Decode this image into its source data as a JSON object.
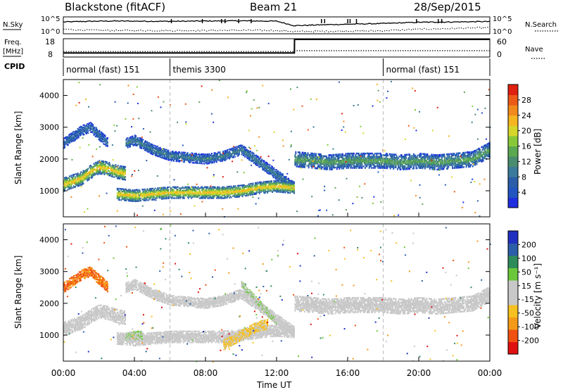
{
  "header": {
    "station": "Blackstone (fitACF)",
    "beam": "Beam 21",
    "date": "28/Sep/2015"
  },
  "side_labels": {
    "nsky": "N.Sky",
    "nsearch": "N.Search",
    "freq": "Freq.",
    "freq_unit": "[MHz]",
    "cpid": "CPID",
    "nave": "Nave"
  },
  "small_axes": {
    "noise_left_ticks": [
      "10^5",
      "10^0"
    ],
    "noise_right_ticks": [
      "10^5",
      "10^0"
    ],
    "freq_left_ticks": [
      "18",
      "8"
    ],
    "nave_right_ticks": [
      "60",
      "0"
    ]
  },
  "cpid_segments": [
    {
      "label": "normal (fast) 151",
      "start_h": 0
    },
    {
      "label": "themis 3300",
      "start_h": 6
    },
    {
      "label": "normal (fast) 151",
      "start_h": 18
    }
  ],
  "colors": {
    "power": [
      "#1f2fe0",
      "#2255c0",
      "#2a5ea8",
      "#3a7a9a",
      "#4a8c70",
      "#5aa850",
      "#88c838",
      "#d6d62a",
      "#f4b520",
      "#f08a1c",
      "#ec5a18",
      "#e02010"
    ],
    "velocity": [
      "#e01010",
      "#f05010",
      "#f59a18",
      "#f5c020",
      "#c8c8c8",
      "#c8c8c8",
      "#6ac83a",
      "#2e8c5a",
      "#2a5ea8",
      "#2030c0"
    ],
    "grey_scatter": "#c8c8c8"
  },
  "chart_data": [
    {
      "type": "line",
      "name": "noise",
      "x": [
        0,
        1,
        2,
        3,
        4,
        6,
        8,
        10,
        12,
        13,
        15,
        18,
        20,
        22,
        24
      ],
      "series": [
        {
          "name": "N.Sky",
          "values": [
            0.72,
            0.75,
            0.77,
            0.78,
            0.77,
            0.76,
            0.78,
            0.79,
            0.77,
            0.48,
            0.55,
            0.62,
            0.7,
            0.72,
            0.75
          ]
        },
        {
          "name": "N.Search",
          "values": [
            0.25,
            0.2,
            0.18,
            0.17,
            0.17,
            0.16,
            0.17,
            0.18,
            0.17,
            0.1,
            0.12,
            0.15,
            0.25,
            0.3,
            0.35
          ]
        }
      ]
    },
    {
      "type": "line",
      "name": "frequency / nave",
      "x": [
        0,
        13,
        13.01,
        24
      ],
      "series": [
        {
          "name": "Freq.",
          "values": [
            10,
            10,
            18,
            18
          ]
        },
        {
          "name": "Nave",
          "values": [
            17,
            17,
            20,
            20
          ]
        }
      ]
    },
    {
      "type": "heatmap",
      "name": "power",
      "xlabel": "",
      "ylabel": "Slant Range [km]",
      "xlim": [
        0,
        24
      ],
      "ylim": [
        180,
        4500
      ],
      "yticks": [
        1000,
        2000,
        3000,
        4000
      ],
      "colorbar": {
        "label": "Power [dB]",
        "ticks": [
          "4",
          "8",
          "12",
          "16",
          "20",
          "24",
          "28"
        ],
        "range": [
          0,
          30
        ]
      },
      "bands": [
        {
          "x": [
            0,
            0.5,
            1,
            1.5,
            2,
            2.5,
            3,
            3.5
          ],
          "center": [
            1200,
            1300,
            1400,
            1600,
            1750,
            1700,
            1600,
            1550
          ],
          "width": 400,
          "value": 22
        },
        {
          "x": [
            3.5,
            4,
            5,
            6,
            7,
            8,
            9,
            10,
            11,
            12,
            13
          ],
          "center": [
            2500,
            2600,
            2300,
            2100,
            2050,
            2000,
            2100,
            2300,
            1900,
            1500,
            1100
          ],
          "width": 300,
          "value": 10
        },
        {
          "x": [
            3,
            4,
            5,
            6,
            7,
            8,
            9,
            10,
            11,
            12,
            13
          ],
          "center": [
            900,
            850,
            900,
            950,
            950,
            950,
            950,
            1000,
            1100,
            1150,
            1100
          ],
          "width": 350,
          "value": 22
        },
        {
          "x": [
            13,
            14,
            15,
            16,
            17,
            18,
            19,
            20,
            21,
            22,
            23,
            24
          ],
          "center": [
            2000,
            1950,
            1900,
            1950,
            1950,
            1950,
            1900,
            1950,
            1900,
            1950,
            2000,
            2300
          ],
          "width": 450,
          "value": 14
        },
        {
          "x": [
            0,
            0.5,
            1,
            1.5,
            2,
            2.5
          ],
          "center": [
            2500,
            2700,
            2900,
            3000,
            2750,
            2500
          ],
          "width": 300,
          "value": 8
        }
      ]
    },
    {
      "type": "heatmap",
      "name": "velocity",
      "xlabel": "Time UT",
      "ylabel": "Slant Range [km]",
      "xlim": [
        0,
        24
      ],
      "ylim": [
        180,
        4500
      ],
      "yticks": [
        1000,
        2000,
        3000,
        4000
      ],
      "xticks": [
        "00:00",
        "04:00",
        "08:00",
        "12:00",
        "16:00",
        "20:00",
        "00:00"
      ],
      "colorbar": {
        "label": "Velocity [m s⁻¹]",
        "ticks": [
          "200",
          "100",
          "50",
          "15",
          "-15",
          "-50",
          "-100",
          "-200"
        ],
        "range": [
          -250,
          250
        ]
      },
      "bands": [
        {
          "x": [
            0,
            0.5,
            1,
            1.5,
            2,
            2.5,
            3,
            3.5
          ],
          "center": [
            1200,
            1300,
            1400,
            1600,
            1750,
            1700,
            1600,
            1550
          ],
          "width": 400,
          "value": 0
        },
        {
          "x": [
            3.5,
            4,
            5,
            6,
            7,
            8,
            9,
            10,
            11,
            12,
            13
          ],
          "center": [
            2500,
            2600,
            2300,
            2100,
            2050,
            2000,
            2100,
            2300,
            1900,
            1500,
            1100
          ],
          "width": 300,
          "value": 0
        },
        {
          "x": [
            3,
            4,
            5,
            6,
            7,
            8,
            9,
            10,
            11,
            12,
            13
          ],
          "center": [
            900,
            850,
            900,
            950,
            950,
            950,
            950,
            1000,
            1100,
            1150,
            1100
          ],
          "width": 350,
          "value": 0
        },
        {
          "x": [
            13,
            14,
            15,
            16,
            17,
            18,
            19,
            20,
            21,
            22,
            23,
            24
          ],
          "center": [
            2000,
            1950,
            1900,
            1950,
            1950,
            1950,
            1900,
            1950,
            1900,
            1950,
            2000,
            2300
          ],
          "width": 450,
          "value": 0
        },
        {
          "x": [
            0,
            0.5,
            1,
            1.5,
            2,
            2.5
          ],
          "center": [
            2500,
            2700,
            2900,
            3000,
            2750,
            2500
          ],
          "width": 300,
          "value": -150
        },
        {
          "x": [
            9,
            10,
            11,
            11.5
          ],
          "center": [
            700,
            1000,
            1300,
            1350
          ],
          "width": 300,
          "value": -60
        },
        {
          "x": [
            3.5,
            4,
            4.5
          ],
          "center": [
            950,
            1000,
            1000
          ],
          "width": 250,
          "value": 40
        },
        {
          "x": [
            10,
            11,
            12
          ],
          "center": [
            2600,
            2000,
            1400
          ],
          "width": 200,
          "value": 40
        }
      ]
    }
  ]
}
